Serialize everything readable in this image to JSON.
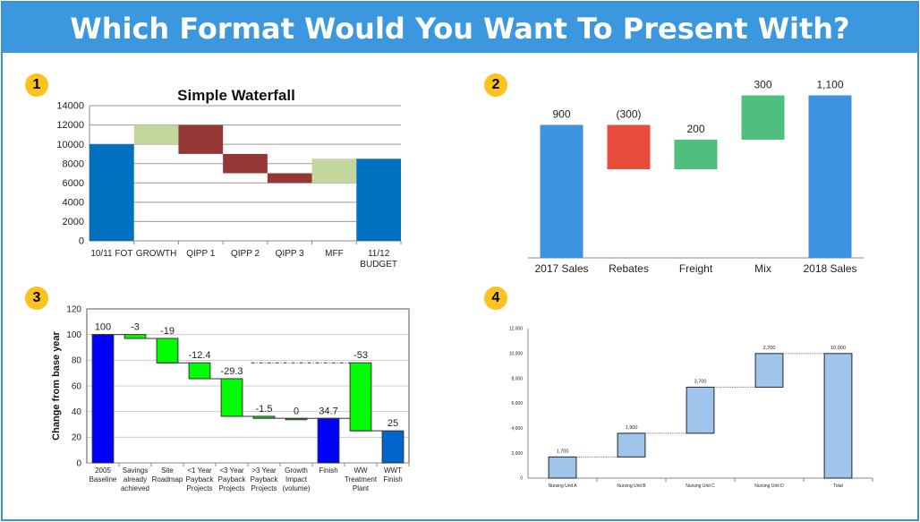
{
  "header": {
    "title": "Which Format Would You Want To Present With?"
  },
  "badges": [
    "1",
    "2",
    "3",
    "4"
  ],
  "chart_data": [
    {
      "type": "bar",
      "subtype": "waterfall",
      "title": "Simple Waterfall",
      "ylim": [
        0,
        14000
      ],
      "yticks": [
        "0",
        "2000",
        "4000",
        "6000",
        "8000",
        "10000",
        "12000",
        "14000"
      ],
      "grid": true,
      "categories": [
        "10/11 FOT",
        "GROWTH",
        "QIPP 1",
        "QIPP 2",
        "QIPP 3",
        "MFF",
        "11/12 BUDGET"
      ],
      "bars": [
        {
          "start": 0,
          "end": 10000,
          "kind": "total"
        },
        {
          "start": 10000,
          "end": 12000,
          "kind": "increase"
        },
        {
          "start": 12000,
          "end": 9000,
          "kind": "decrease"
        },
        {
          "start": 9000,
          "end": 7000,
          "kind": "decrease"
        },
        {
          "start": 7000,
          "end": 6000,
          "kind": "decrease"
        },
        {
          "start": 6000,
          "end": 8500,
          "kind": "increase"
        },
        {
          "start": 0,
          "end": 8500,
          "kind": "total"
        }
      ],
      "colors": {
        "total": "#0070c0",
        "increase": "#c3d69b",
        "decrease": "#953735"
      }
    },
    {
      "type": "bar",
      "subtype": "waterfall",
      "ylim": [
        0,
        1200
      ],
      "grid": false,
      "categories": [
        "2017 Sales",
        "Rebates",
        "Freight",
        "Mix",
        "2018 Sales"
      ],
      "bars": [
        {
          "start": 0,
          "end": 900,
          "kind": "total",
          "label": "900"
        },
        {
          "start": 900,
          "end": 600,
          "kind": "decrease",
          "label": "(300)"
        },
        {
          "start": 600,
          "end": 800,
          "kind": "increase",
          "label": "200"
        },
        {
          "start": 800,
          "end": 1100,
          "kind": "increase",
          "label": "300"
        },
        {
          "start": 0,
          "end": 1100,
          "kind": "total",
          "label": "1,100"
        }
      ],
      "colors": {
        "total": "#3d93de",
        "increase": "#4fbf7d",
        "decrease": "#e74c3c"
      }
    },
    {
      "type": "bar",
      "subtype": "waterfall",
      "ylabel": "Change from base year",
      "ylim": [
        0,
        120
      ],
      "yticks": [
        "0",
        "20",
        "40",
        "60",
        "80",
        "100",
        "120"
      ],
      "grid": true,
      "categories": [
        "2005 Baseline",
        "Savings already achieved",
        "Site Roadmap",
        "<1 Year Payback Projects",
        "<3 Year Payback Projects",
        ">3 Year Payback Projects",
        "Growth Impact (volume)",
        "Finish",
        "WW Treatment Plant",
        "WWT Finish"
      ],
      "bars": [
        {
          "start": 0,
          "end": 100,
          "kind": "total",
          "label": "100"
        },
        {
          "start": 100,
          "end": 97,
          "kind": "decrease",
          "label": "-3"
        },
        {
          "start": 97,
          "end": 78,
          "kind": "decrease",
          "label": "-19"
        },
        {
          "start": 78,
          "end": 65.6,
          "kind": "decrease",
          "label": "-12.4"
        },
        {
          "start": 65.6,
          "end": 36.3,
          "kind": "decrease",
          "label": "-29.3"
        },
        {
          "start": 36.3,
          "end": 34.8,
          "kind": "decrease",
          "label": "-1.5"
        },
        {
          "start": 34.7,
          "end": 34.7,
          "kind": "decrease",
          "label": "0"
        },
        {
          "start": 0,
          "end": 34.7,
          "kind": "total",
          "label": "34.7"
        },
        {
          "start": 78,
          "end": 25,
          "kind": "decrease",
          "label": "-53"
        },
        {
          "start": 0,
          "end": 25,
          "kind": "final",
          "label": "25"
        }
      ],
      "colors": {
        "total": "#0000ff",
        "decrease": "#00ff00",
        "final": "#0066cc"
      }
    },
    {
      "type": "bar",
      "subtype": "waterfall",
      "ylim": [
        0,
        12000
      ],
      "yticks": [
        "0",
        "2,000",
        "4,000",
        "6,000",
        "8,000",
        "10,000",
        "12,000"
      ],
      "grid": false,
      "categories": [
        "Nursing Unit A",
        "Nursing Unit B",
        "Nursing Unit C",
        "Nursing Unit D",
        "Total"
      ],
      "bars": [
        {
          "start": 0,
          "end": 1700,
          "kind": "increase",
          "label": "1,700"
        },
        {
          "start": 1700,
          "end": 3600,
          "kind": "increase",
          "label": "1,900"
        },
        {
          "start": 3600,
          "end": 7300,
          "kind": "increase",
          "label": "3,700"
        },
        {
          "start": 7300,
          "end": 10000,
          "kind": "increase",
          "label": "2,700"
        },
        {
          "start": 0,
          "end": 10000,
          "kind": "total",
          "label": "10,000"
        }
      ],
      "colors": {
        "total": "#9fc5ea",
        "increase": "#9fc5ea"
      }
    }
  ]
}
